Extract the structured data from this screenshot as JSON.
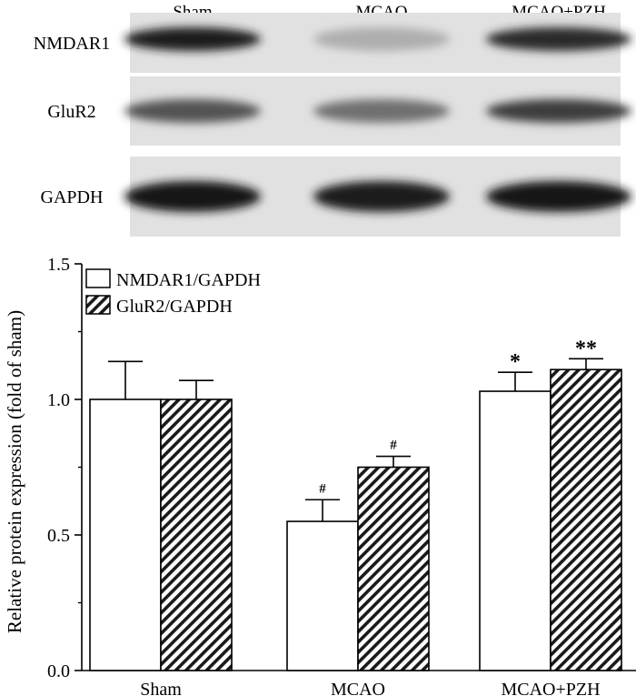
{
  "blot": {
    "lanes": [
      "Sham",
      "MCAO",
      "MCAO+PZH"
    ],
    "rows": [
      {
        "label": "NMDAR1",
        "intensity": [
          0.95,
          0.25,
          0.9
        ]
      },
      {
        "label": "GluR2",
        "intensity": [
          0.7,
          0.55,
          0.8
        ]
      },
      {
        "label": "GAPDH",
        "intensity": [
          1.0,
          0.95,
          1.0
        ]
      }
    ]
  },
  "chart_data": {
    "type": "bar",
    "categories": [
      "Sham",
      "MCAO",
      "MCAO+PZH"
    ],
    "series": [
      {
        "name": "NMDAR1/GAPDH",
        "values": [
          1.0,
          0.55,
          1.03
        ],
        "errors": [
          0.14,
          0.08,
          0.07
        ],
        "markers": [
          "",
          "#",
          "*"
        ]
      },
      {
        "name": "GluR2/GAPDH",
        "values": [
          1.0,
          0.75,
          1.11
        ],
        "errors": [
          0.07,
          0.04,
          0.04
        ],
        "markers": [
          "",
          "#",
          "**"
        ]
      }
    ],
    "ylabel": "Relative protein expression (fold of sham)",
    "ylim": [
      0,
      1.5
    ],
    "yticks": [
      "0.0",
      "0.5",
      "1.0",
      "1.5"
    ],
    "legend": "top-left",
    "grid": false
  }
}
